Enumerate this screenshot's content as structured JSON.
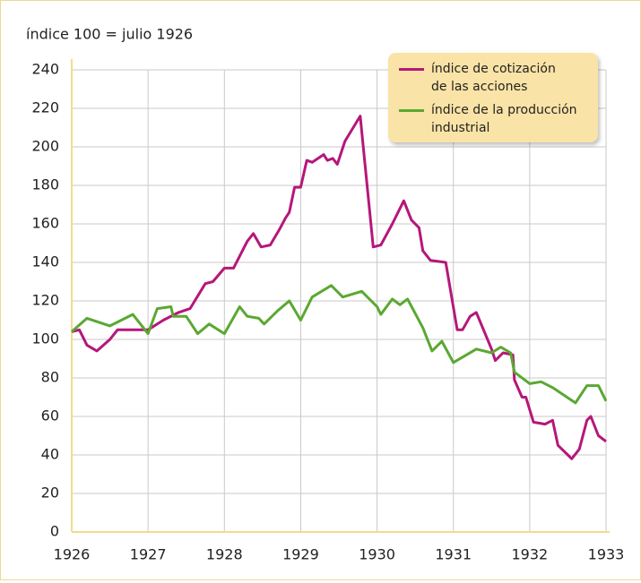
{
  "chart_data": {
    "type": "line",
    "title": "índice 100 = julio 1926",
    "xlim": [
      1926,
      1933
    ],
    "xticks": [
      1926,
      1927,
      1928,
      1929,
      1930,
      1931,
      1932,
      1933
    ],
    "ylim": [
      0,
      240
    ],
    "yticks": [
      0,
      20,
      40,
      60,
      80,
      100,
      120,
      140,
      160,
      180,
      200,
      220,
      240
    ],
    "grid": true,
    "legend": "upper right",
    "series": [
      {
        "name": "índice de cotización\nde las acciones",
        "color": "#b5177a",
        "x": [
          1926.0,
          1926.1,
          1926.2,
          1926.33,
          1926.5,
          1926.6,
          1926.8,
          1927.0,
          1927.2,
          1927.4,
          1927.55,
          1927.75,
          1927.85,
          1928.0,
          1928.12,
          1928.3,
          1928.38,
          1928.48,
          1928.6,
          1928.72,
          1928.8,
          1928.85,
          1928.92,
          1929.0,
          1929.08,
          1929.15,
          1929.3,
          1929.35,
          1929.42,
          1929.48,
          1929.58,
          1929.78,
          1929.95,
          1930.05,
          1930.2,
          1930.35,
          1930.45,
          1930.55,
          1930.6,
          1930.7,
          1930.9,
          1931.05,
          1931.12,
          1931.22,
          1931.3,
          1931.5,
          1931.55,
          1931.65,
          1931.78,
          1931.8,
          1931.9,
          1931.95,
          1932.05,
          1932.2,
          1932.3,
          1932.37,
          1932.5,
          1932.55,
          1932.65,
          1932.75,
          1932.8,
          1932.9,
          1933.0
        ],
        "values": [
          104,
          105,
          97,
          94,
          100,
          105,
          105,
          105,
          110,
          114,
          116,
          129,
          130,
          137,
          137,
          151,
          155,
          148,
          149,
          157,
          163,
          166,
          179,
          179,
          193,
          192,
          196,
          193,
          194,
          191,
          203,
          216,
          148,
          149,
          160,
          172,
          162,
          158,
          146,
          141,
          140,
          105,
          105,
          112,
          114,
          95,
          89,
          93,
          92,
          79,
          70,
          70,
          57,
          56,
          58,
          45,
          40,
          38,
          43,
          58,
          60,
          50,
          47
        ]
      },
      {
        "name": "índice de la producción\nindustrial",
        "color": "#5aa832",
        "x": [
          1926.0,
          1926.2,
          1926.5,
          1926.8,
          1927.0,
          1927.12,
          1927.3,
          1927.33,
          1927.5,
          1927.65,
          1927.8,
          1928.0,
          1928.2,
          1928.3,
          1928.45,
          1928.52,
          1928.7,
          1928.85,
          1929.0,
          1929.15,
          1929.4,
          1929.55,
          1929.8,
          1930.0,
          1930.05,
          1930.2,
          1930.3,
          1930.4,
          1930.6,
          1930.72,
          1930.85,
          1931.0,
          1931.3,
          1931.5,
          1931.62,
          1931.75,
          1931.8,
          1932.0,
          1932.15,
          1932.3,
          1932.6,
          1932.75,
          1932.9,
          1933.0
        ],
        "values": [
          104,
          111,
          107,
          113,
          103,
          116,
          117,
          112,
          112,
          103,
          108,
          103,
          117,
          112,
          111,
          108,
          115,
          120,
          110,
          122,
          128,
          122,
          125,
          117,
          113,
          121,
          118,
          121,
          106,
          94,
          99,
          88,
          95,
          93,
          96,
          93,
          83,
          77,
          78,
          75,
          67,
          76,
          76,
          68
        ]
      }
    ]
  }
}
